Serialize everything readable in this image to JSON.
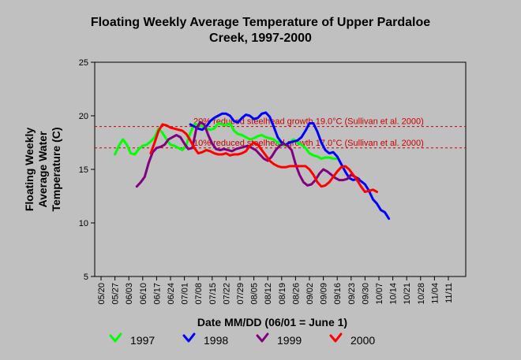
{
  "chart_data": {
    "type": "line",
    "title_line1": "Floating Weekly Average Temperature of Upper Pardaloe",
    "title_line2": "Creek, 1997-2000",
    "xlabel": "Date MM/DD (06/01 = June 1)",
    "ylabel_lines": [
      "Floating Weekly",
      "Average Water",
      "Temperature (C)"
    ],
    "ylim": [
      5,
      25
    ],
    "yticks": [
      5,
      10,
      15,
      20,
      25
    ],
    "x_tick_labels": [
      "05/20",
      "05/27",
      "06/03",
      "06/10",
      "06/17",
      "06/24",
      "07/01",
      "07/08",
      "07/15",
      "07/22",
      "07/29",
      "08/05",
      "08/12",
      "08/19",
      "08/26",
      "09/02",
      "09/09",
      "09/16",
      "09/23",
      "09/30",
      "10/07",
      "10/14",
      "10/21",
      "10/28",
      "11/04",
      "11/11"
    ],
    "x_range_days": [
      0,
      182
    ],
    "reference_lines": [
      {
        "y": 19.0,
        "label": "20% reduced steelhead growth 19.0°C (Sullivan et al. 2000)",
        "color": "#cc0000"
      },
      {
        "y": 17.0,
        "label": "10% reduced steelhead growth 17.0°C (Sullivan et al. 2000)",
        "color": "#cc0000"
      }
    ],
    "series": [
      {
        "name": "1997",
        "color": "#00ff00",
        "x": [
          7,
          9,
          11,
          13,
          15,
          17,
          19,
          21,
          23,
          25,
          27,
          29,
          31,
          33,
          35,
          37,
          39,
          41,
          43,
          45,
          47,
          49,
          51,
          53,
          55,
          57,
          59,
          61,
          63,
          65,
          67,
          69,
          71,
          73,
          75,
          77,
          79,
          81,
          83,
          85,
          87,
          89,
          91,
          93,
          95,
          97,
          99,
          101,
          103,
          105,
          107,
          109,
          111,
          113,
          115,
          117,
          119
        ],
        "y": [
          16.4,
          17.2,
          17.8,
          17.3,
          16.5,
          16.4,
          16.9,
          17.2,
          17.3,
          17.6,
          18.0,
          18.8,
          18.4,
          17.8,
          17.3,
          17.2,
          17.0,
          16.8,
          17.3,
          18.4,
          19.2,
          19.2,
          19.0,
          18.8,
          18.7,
          18.8,
          19.3,
          19.2,
          19.1,
          19.3,
          18.6,
          18.3,
          18.2,
          18.0,
          17.8,
          17.9,
          18.1,
          18.2,
          18.0,
          17.9,
          17.8,
          17.5,
          17.3,
          17.2,
          17.5,
          17.8,
          17.5,
          17.3,
          17.0,
          16.5,
          16.3,
          16.2,
          16.0,
          16.1,
          16.1,
          16.0,
          16.0
        ]
      },
      {
        "name": "1998",
        "color": "#0000ff",
        "x": [
          45,
          47,
          49,
          51,
          53,
          55,
          57,
          59,
          61,
          63,
          65,
          67,
          69,
          71,
          73,
          75,
          77,
          79,
          81,
          83,
          85,
          87,
          89,
          91,
          93,
          95,
          97,
          99,
          101,
          103,
          105,
          107,
          109,
          111,
          113,
          115,
          117,
          119,
          121,
          123,
          125,
          127,
          129,
          131,
          133,
          135,
          137,
          139,
          141,
          143,
          145
        ],
        "y": [
          19.2,
          19.0,
          18.8,
          18.7,
          19.0,
          19.5,
          19.8,
          20.0,
          20.2,
          20.2,
          20.0,
          19.5,
          19.4,
          19.8,
          20.1,
          20.0,
          19.7,
          19.8,
          20.2,
          20.3,
          19.9,
          19.0,
          18.0,
          17.5,
          17.3,
          17.5,
          17.6,
          17.7,
          18.0,
          18.6,
          19.3,
          19.3,
          18.5,
          17.5,
          16.8,
          16.5,
          16.6,
          16.2,
          15.5,
          14.8,
          14.2,
          14.0,
          14.1,
          13.9,
          13.6,
          13.0,
          12.2,
          11.8,
          11.2,
          11.0,
          10.4
        ]
      },
      {
        "name": "1999",
        "color": "#800080",
        "x": [
          18,
          20,
          22,
          24,
          26,
          28,
          30,
          32,
          34,
          36,
          38,
          40,
          42,
          44,
          46,
          48,
          50,
          52,
          54,
          56,
          58,
          60,
          62,
          64,
          66,
          68,
          70,
          72,
          74,
          76,
          78,
          80,
          82,
          84,
          86,
          88,
          90,
          92,
          94,
          96,
          98,
          100,
          102,
          104,
          106,
          108,
          110,
          112,
          114,
          116,
          118,
          120,
          122,
          124,
          126,
          128,
          130
        ],
        "y": [
          13.4,
          13.8,
          14.3,
          15.6,
          16.6,
          17.0,
          17.1,
          17.3,
          17.8,
          18.0,
          18.2,
          18.0,
          17.4,
          16.9,
          17.0,
          18.8,
          19.4,
          19.2,
          18.2,
          17.4,
          16.9,
          16.8,
          16.9,
          16.8,
          16.7,
          16.9,
          17.0,
          17.1,
          17.2,
          17.0,
          16.8,
          16.4,
          16.0,
          15.8,
          16.2,
          16.8,
          17.2,
          17.4,
          17.2,
          16.8,
          15.5,
          14.5,
          13.8,
          13.5,
          13.6,
          14.0,
          14.6,
          15.0,
          14.8,
          14.5,
          14.2,
          14.0,
          14.0,
          14.1,
          14.5,
          14.3,
          14.1
        ]
      },
      {
        "name": "2000",
        "color": "#ff0000",
        "x": [
          25,
          27,
          29,
          31,
          33,
          35,
          37,
          39,
          41,
          43,
          45,
          47,
          49,
          51,
          53,
          55,
          57,
          59,
          61,
          63,
          65,
          67,
          69,
          71,
          73,
          75,
          77,
          79,
          81,
          83,
          85,
          87,
          89,
          91,
          93,
          95,
          97,
          99,
          101,
          103,
          105,
          107,
          109,
          111,
          113,
          115,
          117,
          119,
          121,
          123,
          125,
          127,
          129,
          131,
          133,
          135,
          137,
          139
        ],
        "y": [
          16.5,
          17.5,
          18.6,
          19.2,
          19.1,
          18.9,
          18.8,
          18.7,
          18.6,
          18.3,
          17.7,
          17.0,
          16.5,
          16.6,
          16.8,
          16.7,
          16.5,
          16.4,
          16.4,
          16.5,
          16.3,
          16.4,
          16.4,
          16.5,
          16.7,
          17.2,
          17.5,
          17.3,
          16.8,
          16.3,
          15.8,
          15.5,
          15.3,
          15.2,
          15.2,
          15.3,
          15.3,
          15.3,
          15.3,
          15.3,
          15.0,
          14.5,
          13.8,
          13.4,
          13.5,
          13.8,
          14.3,
          14.8,
          15.2,
          15.3,
          15.0,
          14.5,
          14.0,
          13.4,
          12.9,
          13.0,
          13.1,
          12.9
        ]
      }
    ],
    "legend_position": "bottom",
    "grid": false
  }
}
